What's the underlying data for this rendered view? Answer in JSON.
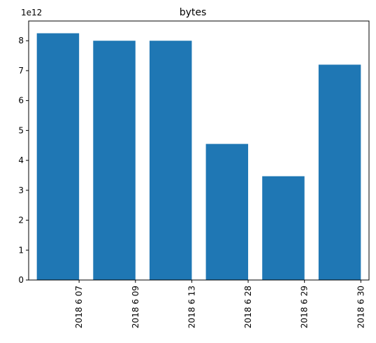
{
  "chart_data": {
    "type": "bar",
    "title": "bytes",
    "xlabel": "",
    "ylabel": "",
    "offset_label": "1e12",
    "categories": [
      "2018 6 07",
      "2018 6 09",
      "2018 6 13",
      "2018 6 28",
      "2018 6 29",
      "2018 6 30"
    ],
    "values": [
      8250000000000.0,
      8000000000000.0,
      8000000000000.0,
      4550000000000.0,
      3470000000000.0,
      7200000000000.0
    ],
    "y_ticks": [
      "0",
      "1",
      "2",
      "3",
      "4",
      "5",
      "6",
      "7",
      "8"
    ],
    "ylim": [
      0,
      8660000000000.0
    ],
    "grid": false,
    "legend": "none",
    "colors": {
      "bar": "#1f77b4"
    }
  }
}
